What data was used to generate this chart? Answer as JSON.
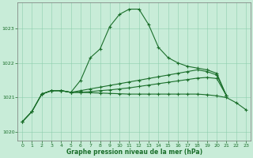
{
  "xlabel": "Graphe pression niveau de la mer (hPa)",
  "background_color": "#c8ecd8",
  "grid_color": "#88ccaa",
  "line_color": "#1a6e2a",
  "ylim": [
    1019.75,
    1023.75
  ],
  "yticks": [
    1020,
    1021,
    1022,
    1023
  ],
  "xlim": [
    -0.5,
    23.5
  ],
  "xticks": [
    0,
    1,
    2,
    3,
    4,
    5,
    6,
    7,
    8,
    9,
    10,
    11,
    12,
    13,
    14,
    15,
    16,
    17,
    18,
    19,
    20,
    21,
    22,
    23
  ],
  "y_main": [
    1020.3,
    1020.6,
    1021.1,
    1021.2,
    1021.2,
    1021.15,
    1021.5,
    1022.15,
    1022.4,
    1023.05,
    1023.4,
    1023.55,
    1023.55,
    1023.1,
    1022.45,
    1022.15,
    1022.0,
    1021.9,
    1021.85,
    1021.8,
    1021.7,
    1021.05,
    null,
    null
  ],
  "y2": [
    1020.3,
    1020.6,
    1021.1,
    1021.2,
    1021.2,
    1021.15,
    1021.2,
    1021.25,
    1021.3,
    1021.35,
    1021.4,
    1021.45,
    1021.5,
    1021.55,
    1021.6,
    1021.65,
    1021.7,
    1021.75,
    1021.8,
    1021.75,
    1021.65,
    1021.05,
    null,
    null
  ],
  "y3": [
    1020.3,
    1020.6,
    1021.1,
    1021.2,
    1021.2,
    1021.15,
    1021.15,
    1021.17,
    1021.2,
    1021.22,
    1021.25,
    1021.28,
    1021.32,
    1021.36,
    1021.4,
    1021.44,
    1021.48,
    1021.52,
    1021.56,
    1021.58,
    1021.55,
    1021.05,
    null,
    null
  ],
  "y4": [
    null,
    null,
    1021.1,
    1021.2,
    1021.2,
    1021.15,
    1021.15,
    1021.14,
    1021.13,
    1021.12,
    1021.11,
    1021.1,
    1021.1,
    1021.1,
    1021.1,
    1021.1,
    1021.1,
    1021.1,
    1021.1,
    1021.08,
    1021.05,
    1021.0,
    1020.85,
    1020.65
  ],
  "marker": "+",
  "markersize": 3.5,
  "linewidth": 0.8
}
